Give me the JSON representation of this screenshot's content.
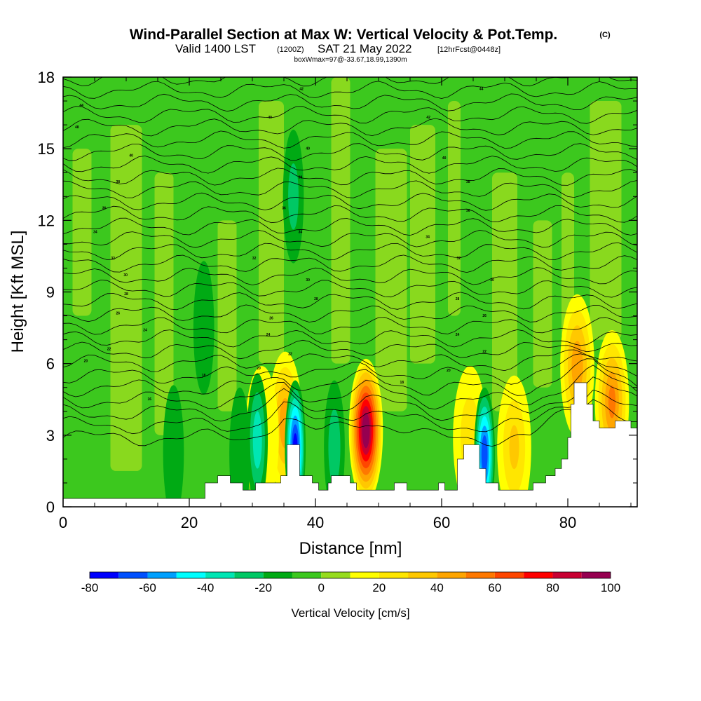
{
  "title": {
    "main": "Wind-Parallel Section at Max W: Vertical Velocity & Pot.Temp.",
    "copyright": "(C)",
    "valid_prefix": "Valid 1400 LST",
    "valid_utc": "(1200Z)",
    "valid_date": "SAT 21 May 2022",
    "forecast_info": "[12hrFcst@0448z]",
    "box_info": "boxWmax=97@-33.67,18.99,1390m"
  },
  "chart_data": {
    "type": "heatmap",
    "xlabel": "Distance [nm]",
    "ylabel": "Height [Kft MSL]",
    "xlim": [
      0,
      91
    ],
    "ylim": [
      0,
      18
    ],
    "x_ticks": [
      0,
      20,
      40,
      60,
      80
    ],
    "y_ticks": [
      0,
      3,
      6,
      9,
      12,
      15,
      18
    ],
    "colorbar": {
      "label": "Vertical Velocity [cm/s]",
      "ticks": [
        -80,
        -60,
        -40,
        -20,
        0,
        20,
        40,
        60,
        80,
        100
      ],
      "levels": [
        -80,
        -70,
        -60,
        -50,
        -40,
        -30,
        -20,
        -10,
        0,
        10,
        20,
        30,
        40,
        50,
        60,
        70,
        80,
        90,
        100
      ],
      "colors": [
        "#0000ff",
        "#0050ff",
        "#00a0ff",
        "#00ffff",
        "#00e6b4",
        "#00c864",
        "#00aa14",
        "#3cc81e",
        "#96dc1e",
        "#ffff00",
        "#ffe600",
        "#ffc800",
        "#ffa500",
        "#ff7800",
        "#ff4600",
        "#ff0000",
        "#c80032",
        "#960050"
      ]
    },
    "terrain": [
      [
        0,
        0.35
      ],
      [
        22.5,
        0.35
      ],
      [
        22.5,
        0.35
      ],
      [
        22.5,
        1.0
      ],
      [
        24.5,
        1.0
      ],
      [
        24.5,
        1.3
      ],
      [
        26.5,
        1.3
      ],
      [
        26.5,
        1.0
      ],
      [
        28.5,
        1.0
      ],
      [
        28.5,
        0.7
      ],
      [
        30.5,
        0.7
      ],
      [
        30.5,
        1.0
      ],
      [
        34.5,
        1.0
      ],
      [
        34.5,
        1.3
      ],
      [
        35.5,
        1.3
      ],
      [
        35.5,
        2.6
      ],
      [
        37.5,
        2.6
      ],
      [
        37.5,
        1.3
      ],
      [
        39.5,
        1.3
      ],
      [
        39.5,
        1.0
      ],
      [
        40.5,
        1.0
      ],
      [
        40.5,
        0.7
      ],
      [
        42.0,
        0.7
      ],
      [
        42.0,
        1.0
      ],
      [
        42.5,
        1.0
      ],
      [
        42.5,
        1.3
      ],
      [
        45.5,
        1.3
      ],
      [
        45.5,
        1.0
      ],
      [
        46.5,
        1.0
      ],
      [
        46.5,
        0.7
      ],
      [
        52.5,
        0.7
      ],
      [
        52.5,
        1.0
      ],
      [
        54.5,
        1.0
      ],
      [
        54.5,
        0.7
      ],
      [
        59.5,
        0.7
      ],
      [
        59.5,
        1.0
      ],
      [
        60.5,
        1.0
      ],
      [
        60.5,
        0.7
      ],
      [
        62.5,
        0.7
      ],
      [
        62.5,
        2.0
      ],
      [
        63.5,
        2.0
      ],
      [
        63.5,
        2.6
      ],
      [
        66.0,
        2.6
      ],
      [
        66.0,
        1.6
      ],
      [
        67.0,
        1.6
      ],
      [
        67.0,
        1.0
      ],
      [
        69.0,
        1.0
      ],
      [
        69.0,
        0.7
      ],
      [
        74.5,
        0.7
      ],
      [
        74.5,
        1.0
      ],
      [
        76.5,
        1.0
      ],
      [
        76.5,
        1.3
      ],
      [
        78.0,
        1.3
      ],
      [
        78.0,
        1.6
      ],
      [
        79.0,
        1.6
      ],
      [
        79.0,
        2.0
      ],
      [
        80.0,
        2.0
      ],
      [
        80.0,
        2.9
      ],
      [
        80.5,
        2.9
      ],
      [
        80.5,
        4.3
      ],
      [
        81.0,
        4.3
      ],
      [
        81.0,
        5.2
      ],
      [
        83.0,
        5.2
      ],
      [
        83.0,
        4.3
      ],
      [
        84.0,
        4.3
      ],
      [
        84.0,
        3.6
      ],
      [
        85.0,
        3.6
      ],
      [
        85.0,
        3.3
      ],
      [
        87.5,
        3.3
      ],
      [
        87.5,
        3.6
      ],
      [
        90.0,
        3.6
      ],
      [
        90.0,
        3.3
      ],
      [
        91,
        3.3
      ]
    ],
    "updraft_features": [
      {
        "x": 48.0,
        "y": 3.2,
        "peak": 97
      },
      {
        "x": 35.2,
        "y": 3.5,
        "peak": 45
      },
      {
        "x": 31.5,
        "y": 2.9,
        "peak": 15
      },
      {
        "x": 87.0,
        "y": 4.4,
        "peak": 50
      },
      {
        "x": 81.5,
        "y": 5.9,
        "peak": 45
      },
      {
        "x": 71.5,
        "y": 2.5,
        "peak": 30
      },
      {
        "x": 64.5,
        "y": 2.9,
        "peak": 25
      },
      {
        "x": 44.0,
        "y": 3.0,
        "peak": 8
      }
    ],
    "downdraft_features": [
      {
        "x": 36.8,
        "y": 2.5,
        "peak": -70
      },
      {
        "x": 66.8,
        "y": 2.2,
        "peak": -65
      },
      {
        "x": 30.8,
        "y": 2.8,
        "peak": -35
      },
      {
        "x": 43.0,
        "y": 2.5,
        "peak": -25
      },
      {
        "x": 22.3,
        "y": 7.5,
        "peak": -18
      },
      {
        "x": 36.5,
        "y": 13.0,
        "peak": -22
      },
      {
        "x": 28.0,
        "y": 2.2,
        "peak": -15
      },
      {
        "x": 17.5,
        "y": 2.3,
        "peak": -12
      }
    ],
    "theta_contour_labels": [
      {
        "x": 2.9,
        "y": 16.8,
        "text": "44"
      },
      {
        "x": 2.2,
        "y": 15.9,
        "text": "48"
      },
      {
        "x": 10.8,
        "y": 14.7,
        "text": "40"
      },
      {
        "x": 8.7,
        "y": 13.6,
        "text": "38"
      },
      {
        "x": 6.5,
        "y": 12.5,
        "text": "36"
      },
      {
        "x": 5.1,
        "y": 11.5,
        "text": "34"
      },
      {
        "x": 7.9,
        "y": 10.4,
        "text": "32"
      },
      {
        "x": 9.9,
        "y": 9.7,
        "text": "30"
      },
      {
        "x": 10.0,
        "y": 8.9,
        "text": "28"
      },
      {
        "x": 8.7,
        "y": 8.1,
        "text": "26"
      },
      {
        "x": 13.0,
        "y": 7.4,
        "text": "24"
      },
      {
        "x": 7.3,
        "y": 6.6,
        "text": "22"
      },
      {
        "x": 3.6,
        "y": 6.1,
        "text": "20"
      },
      {
        "x": 22.3,
        "y": 5.5,
        "text": "18"
      },
      {
        "x": 13.7,
        "y": 4.5,
        "text": "16"
      },
      {
        "x": 37.8,
        "y": 17.5,
        "text": "42"
      },
      {
        "x": 32.8,
        "y": 16.3,
        "text": "40"
      },
      {
        "x": 38.8,
        "y": 15.0,
        "text": "40"
      },
      {
        "x": 37.6,
        "y": 13.8,
        "text": "38"
      },
      {
        "x": 35.0,
        "y": 12.5,
        "text": "36"
      },
      {
        "x": 37.6,
        "y": 11.5,
        "text": "34"
      },
      {
        "x": 30.3,
        "y": 10.4,
        "text": "32"
      },
      {
        "x": 38.8,
        "y": 9.5,
        "text": "30"
      },
      {
        "x": 40.1,
        "y": 8.7,
        "text": "28"
      },
      {
        "x": 33.0,
        "y": 7.9,
        "text": "26"
      },
      {
        "x": 32.5,
        "y": 7.2,
        "text": "24"
      },
      {
        "x": 36.0,
        "y": 6.4,
        "text": "22"
      },
      {
        "x": 31.0,
        "y": 5.8,
        "text": "20"
      },
      {
        "x": 53.7,
        "y": 5.2,
        "text": "18"
      },
      {
        "x": 66.3,
        "y": 17.5,
        "text": "44"
      },
      {
        "x": 57.9,
        "y": 16.3,
        "text": "42"
      },
      {
        "x": 60.4,
        "y": 14.6,
        "text": "40"
      },
      {
        "x": 64.2,
        "y": 13.6,
        "text": "38"
      },
      {
        "x": 64.2,
        "y": 12.4,
        "text": "36"
      },
      {
        "x": 57.8,
        "y": 11.3,
        "text": "34"
      },
      {
        "x": 62.7,
        "y": 10.4,
        "text": "32"
      },
      {
        "x": 68.0,
        "y": 9.5,
        "text": "30"
      },
      {
        "x": 62.5,
        "y": 8.7,
        "text": "28"
      },
      {
        "x": 66.8,
        "y": 8.0,
        "text": "26"
      },
      {
        "x": 62.5,
        "y": 7.2,
        "text": "24"
      },
      {
        "x": 66.8,
        "y": 6.5,
        "text": "22"
      },
      {
        "x": 61.1,
        "y": 5.7,
        "text": "20"
      }
    ]
  }
}
